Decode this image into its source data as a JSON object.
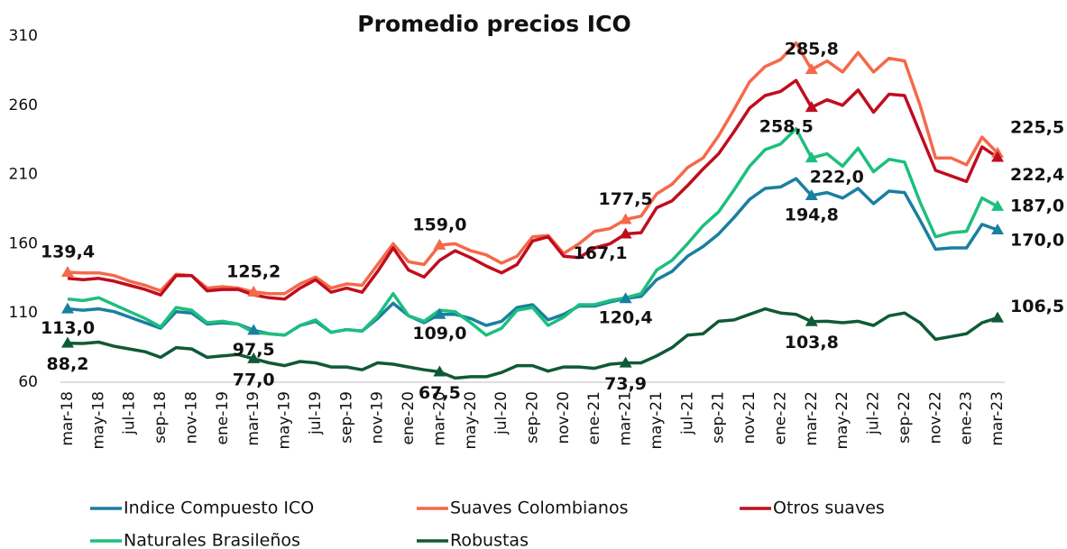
{
  "chart_data": {
    "type": "line",
    "title": "Promedio precios ICO",
    "categories": [
      "mar-18",
      null,
      "may-18",
      null,
      "jul-18",
      null,
      "sep-18",
      null,
      "nov-18",
      null,
      "ene-19",
      null,
      "mar-19",
      null,
      "may-19",
      null,
      "jul-19",
      null,
      "sep-19",
      null,
      "nov-19",
      null,
      "ene-20",
      null,
      "mar-20",
      null,
      "may-20",
      null,
      "jul-20",
      null,
      "sep-20",
      null,
      "nov-20",
      null,
      "ene-21",
      null,
      "mar-21",
      null,
      "may-21",
      null,
      "jul-21",
      null,
      "sep-21",
      null,
      "nov-21",
      null,
      "ene-22",
      null,
      "mar-22",
      null,
      "may-22",
      null,
      "jul-22",
      null,
      "sep-22",
      null,
      "nov-22",
      null,
      "ene-23",
      null,
      "mar-23"
    ],
    "ylim": [
      60,
      310
    ],
    "yticks": [
      60,
      110,
      160,
      210,
      260,
      310
    ],
    "series": [
      {
        "name": "Indice Compuesto ICO",
        "color": "#1a7fa0",
        "values": [
          113.0,
          112,
          113,
          111,
          107,
          103,
          99,
          111,
          110,
          102,
          103,
          102,
          97.5,
          95,
          94,
          101,
          104,
          96,
          98,
          97,
          106,
          117,
          108,
          103,
          109.0,
          109,
          106,
          101,
          104,
          114,
          116,
          105,
          109,
          115,
          115,
          118,
          120.4,
          122,
          134,
          140,
          151,
          158,
          167,
          179,
          192,
          200,
          201,
          207,
          194.8,
          197,
          193,
          200,
          189,
          198,
          197,
          177,
          156,
          157,
          157,
          174,
          170.0
        ],
        "value_labels": [
          "113,0",
          null,
          null,
          null,
          null,
          null,
          null,
          null,
          null,
          null,
          null,
          null,
          "97,5",
          null,
          null,
          null,
          null,
          null,
          null,
          null,
          null,
          null,
          null,
          null,
          "109,0",
          null,
          null,
          null,
          null,
          null,
          null,
          null,
          null,
          null,
          null,
          null,
          "120,4",
          null,
          null,
          null,
          null,
          null,
          null,
          null,
          null,
          null,
          null,
          null,
          "194,8",
          null,
          null,
          null,
          null,
          null,
          null,
          null,
          null,
          null,
          null,
          null,
          "170,0"
        ]
      },
      {
        "name": "Suaves Colombianos",
        "color": "#f4694a",
        "values": [
          139.4,
          139,
          139,
          137,
          133,
          130,
          126,
          138,
          137,
          128,
          129,
          128,
          125.2,
          124,
          124,
          131,
          136,
          128,
          131,
          130,
          145,
          160,
          147,
          145,
          159.0,
          160,
          155,
          152,
          146,
          151,
          165,
          166,
          153,
          160,
          169,
          171,
          177.5,
          180,
          196,
          203,
          215,
          222,
          238,
          257,
          277,
          288,
          293,
          305,
          285.8,
          292,
          284,
          298,
          284,
          294,
          292,
          260,
          222,
          222,
          217,
          237,
          225.5
        ],
        "value_labels": [
          "139,4",
          null,
          null,
          null,
          null,
          null,
          null,
          null,
          null,
          null,
          null,
          null,
          "125,2",
          null,
          null,
          null,
          null,
          null,
          null,
          null,
          null,
          null,
          null,
          null,
          "159,0",
          null,
          null,
          null,
          null,
          null,
          null,
          null,
          null,
          null,
          null,
          null,
          "177,5",
          null,
          null,
          null,
          null,
          null,
          null,
          null,
          null,
          null,
          null,
          null,
          "285,8",
          null,
          null,
          null,
          null,
          null,
          null,
          null,
          null,
          null,
          null,
          null,
          "225,5"
        ]
      },
      {
        "name": "Otros suaves",
        "color": "#c00d1e",
        "values": [
          135,
          134,
          135,
          133,
          130,
          127,
          123,
          137,
          137,
          126,
          127,
          127,
          123,
          121,
          120,
          128,
          134,
          125,
          128,
          125,
          140,
          157,
          141,
          136,
          148,
          155,
          150,
          144,
          139,
          145,
          162,
          165,
          151,
          150,
          157,
          160,
          167.1,
          168,
          186,
          191,
          202,
          214,
          225,
          241,
          258,
          267,
          270,
          278,
          258.5,
          264,
          260,
          271,
          255,
          268,
          267,
          240,
          213,
          209,
          205,
          230,
          222.4
        ],
        "value_labels": [
          null,
          null,
          null,
          null,
          null,
          null,
          null,
          null,
          null,
          null,
          null,
          null,
          null,
          null,
          null,
          null,
          null,
          null,
          null,
          null,
          null,
          null,
          null,
          null,
          null,
          null,
          null,
          null,
          null,
          null,
          null,
          null,
          null,
          null,
          null,
          null,
          "167,1",
          null,
          null,
          null,
          null,
          null,
          null,
          null,
          null,
          null,
          null,
          null,
          "258,5",
          null,
          null,
          null,
          null,
          null,
          null,
          null,
          null,
          null,
          null,
          null,
          "222,4"
        ]
      },
      {
        "name": "Naturales Brasileños",
        "color": "#1dbf7e",
        "values": [
          120,
          119,
          121,
          116,
          111,
          106,
          100,
          114,
          112,
          103,
          104,
          102,
          96,
          95,
          94,
          101,
          105,
          96,
          98,
          97,
          108,
          124,
          108,
          104,
          112,
          111,
          103,
          94,
          99,
          112,
          114,
          101,
          107,
          116,
          116,
          119,
          121,
          124,
          141,
          148,
          160,
          173,
          183,
          199,
          216,
          228,
          232,
          243,
          222.0,
          225,
          216,
          229,
          212,
          221,
          219,
          190,
          165,
          168,
          169,
          193,
          187.0
        ],
        "value_labels": [
          null,
          null,
          null,
          null,
          null,
          null,
          null,
          null,
          null,
          null,
          null,
          null,
          null,
          null,
          null,
          null,
          null,
          null,
          null,
          null,
          null,
          null,
          null,
          null,
          null,
          null,
          null,
          null,
          null,
          null,
          null,
          null,
          null,
          null,
          null,
          null,
          null,
          null,
          null,
          null,
          null,
          null,
          null,
          null,
          null,
          null,
          null,
          null,
          "222,0",
          null,
          null,
          null,
          null,
          null,
          null,
          null,
          null,
          null,
          null,
          null,
          "187,0"
        ]
      },
      {
        "name": "Robustas",
        "color": "#0f5a36",
        "values": [
          88.2,
          88,
          89,
          86,
          84,
          82,
          78,
          85,
          84,
          78,
          79,
          80,
          77.0,
          74,
          72,
          75,
          74,
          71,
          71,
          69,
          74,
          73,
          71,
          69,
          67.5,
          63,
          64,
          64,
          67,
          72,
          72,
          68,
          71,
          71,
          70,
          73,
          73.9,
          74,
          79,
          85,
          94,
          95,
          104,
          105,
          109,
          113,
          110,
          109,
          103.8,
          104,
          103,
          104,
          101,
          108,
          110,
          103,
          91,
          93,
          95,
          103,
          106.5
        ],
        "value_labels": [
          "88,2",
          null,
          null,
          null,
          null,
          null,
          null,
          null,
          null,
          null,
          null,
          null,
          "77,0",
          null,
          null,
          null,
          null,
          null,
          null,
          null,
          null,
          null,
          null,
          null,
          "67,5",
          null,
          null,
          null,
          null,
          null,
          null,
          null,
          null,
          null,
          null,
          null,
          "73,9",
          null,
          null,
          null,
          null,
          null,
          null,
          null,
          null,
          null,
          null,
          null,
          "103,8",
          null,
          null,
          null,
          null,
          null,
          null,
          null,
          null,
          null,
          null,
          null,
          "106,5"
        ]
      }
    ]
  }
}
